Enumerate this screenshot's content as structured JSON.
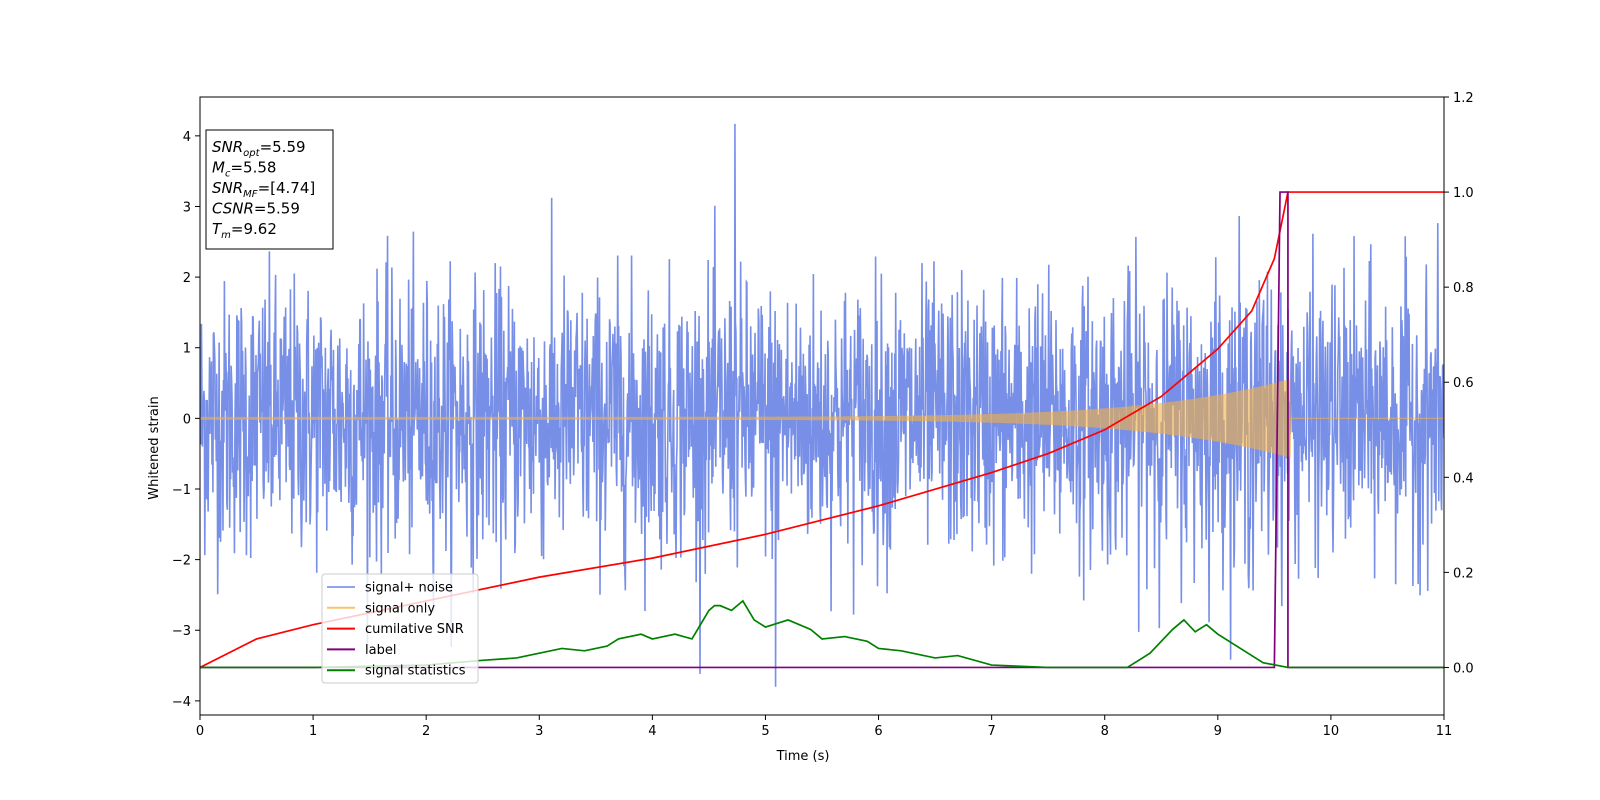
{
  "chart_data": {
    "type": "line",
    "xlabel": "Time (s)",
    "ylabel": "Whitened strain",
    "xlim": [
      0,
      11
    ],
    "ylim": [
      -4.2,
      4.55
    ],
    "y2lim": [
      -0.1,
      1.2
    ],
    "x_ticks": [
      "0",
      "1",
      "2",
      "3",
      "4",
      "5",
      "6",
      "7",
      "8",
      "9",
      "10",
      "11"
    ],
    "y_ticks": [
      "4",
      "3",
      "2",
      "1",
      "0",
      "−1",
      "−2",
      "−3",
      "−4"
    ],
    "y2_ticks": [
      "1.2",
      "1.0",
      "0.8",
      "0.6",
      "0.4",
      "0.2",
      "0.0"
    ],
    "grid": false,
    "legend_position": "lower-left",
    "annotations": [
      {
        "main": "SNR",
        "sub": "opt",
        "rest": "=5.59"
      },
      {
        "main": "M",
        "sub": "c",
        "rest": "=5.58"
      },
      {
        "main": "SNR",
        "sub": "MF",
        "rest": "=[4.74]"
      },
      {
        "main": "CSNR",
        "sub": "",
        "rest": "=5.59"
      },
      {
        "main": "T",
        "sub": "m",
        "rest": "=9.62"
      }
    ],
    "series": [
      {
        "name": "signal+ noise",
        "axis": "left",
        "color": "#6b85e5",
        "description_values": {
          "noise_sigma": 1.0,
          "max": 4.17,
          "max_at": 4.73,
          "min": -3.8,
          "min_at": 5.09
        }
      },
      {
        "name": "signal only",
        "axis": "left",
        "color": "#f5b041",
        "chirp": {
          "end_time": 9.62,
          "start_amplitude": 0.02,
          "end_amplitude": 0.55
        }
      },
      {
        "name": "cumilative SNR",
        "axis": "right",
        "color": "#ff0000",
        "x": [
          0,
          0.5,
          1,
          2,
          3,
          4,
          5,
          6,
          7,
          7.5,
          8,
          8.5,
          9,
          9.3,
          9.5,
          9.62,
          11
        ],
        "y": [
          0.0,
          0.06,
          0.09,
          0.14,
          0.19,
          0.23,
          0.28,
          0.34,
          0.41,
          0.45,
          0.5,
          0.57,
          0.67,
          0.75,
          0.86,
          1.0,
          1.0
        ]
      },
      {
        "name": "label",
        "axis": "right",
        "color": "#800080",
        "x": [
          0,
          9.5,
          9.55,
          9.62,
          9.62,
          11
        ],
        "y": [
          0,
          0,
          1.0,
          1.0,
          0,
          0
        ]
      },
      {
        "name": "signal statistics",
        "axis": "right",
        "color": "#008000",
        "x": [
          0,
          1,
          2,
          2.5,
          2.8,
          3.0,
          3.2,
          3.4,
          3.6,
          3.7,
          3.9,
          4.0,
          4.1,
          4.2,
          4.35,
          4.5,
          4.55,
          4.6,
          4.7,
          4.8,
          4.9,
          5.0,
          5.2,
          5.4,
          5.5,
          5.7,
          5.9,
          6.0,
          6.2,
          6.5,
          6.7,
          7.0,
          7.5,
          7.8,
          8.0,
          8.2,
          8.4,
          8.6,
          8.7,
          8.8,
          8.9,
          9.0,
          9.2,
          9.4,
          9.62,
          10,
          11
        ],
        "y": [
          0.0,
          0.0,
          0.005,
          0.015,
          0.02,
          0.03,
          0.04,
          0.035,
          0.045,
          0.06,
          0.07,
          0.06,
          0.065,
          0.07,
          0.06,
          0.12,
          0.13,
          0.13,
          0.12,
          0.14,
          0.1,
          0.085,
          0.1,
          0.08,
          0.06,
          0.065,
          0.055,
          0.04,
          0.035,
          0.02,
          0.025,
          0.005,
          0.0,
          0.0,
          0.0,
          0.0,
          0.03,
          0.08,
          0.1,
          0.075,
          0.09,
          0.07,
          0.04,
          0.01,
          0.0,
          0.0,
          0.0
        ]
      }
    ]
  }
}
